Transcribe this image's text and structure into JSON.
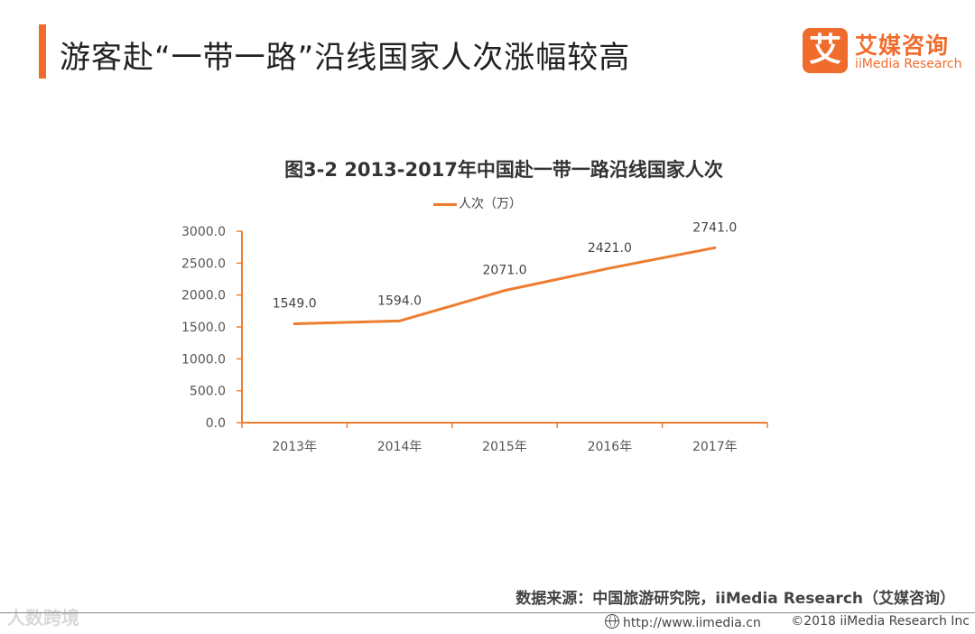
{
  "header": {
    "title": "游客赴“一带一路”沿线国家人次涨幅较高"
  },
  "logo": {
    "mark": "艾",
    "name_cn": "艾媒咨询",
    "name_en": "iiMedia Research"
  },
  "chart_data": {
    "type": "line",
    "title": "图3-2 2013-2017年中国赴一带一路沿线国家人次",
    "categories": [
      "2013年",
      "2014年",
      "2015年",
      "2016年",
      "2017年"
    ],
    "series": [
      {
        "name": "人次（万）",
        "values": [
          1549.0,
          1594.0,
          2071.0,
          2421.0,
          2741.0
        ],
        "color": "#ed7d31"
      }
    ],
    "data_labels": [
      "1549.0",
      "1594.0",
      "2071.0",
      "2421.0",
      "2741.0"
    ],
    "yticks": [
      "0.0",
      "500.0",
      "1000.0",
      "1500.0",
      "2000.0",
      "2500.0",
      "3000.0"
    ],
    "ylim": [
      0,
      3000
    ],
    "xlabel": "",
    "ylabel": "",
    "grid": false,
    "legend": "top-center"
  },
  "footer": {
    "source": "数据来源：中国旅游研究院，iiMedia Research（艾媒咨询）",
    "url": "http://www.iimedia.cn",
    "copyright": "©2018 iiMedia Research Inc",
    "watermark": "人数跨境"
  }
}
